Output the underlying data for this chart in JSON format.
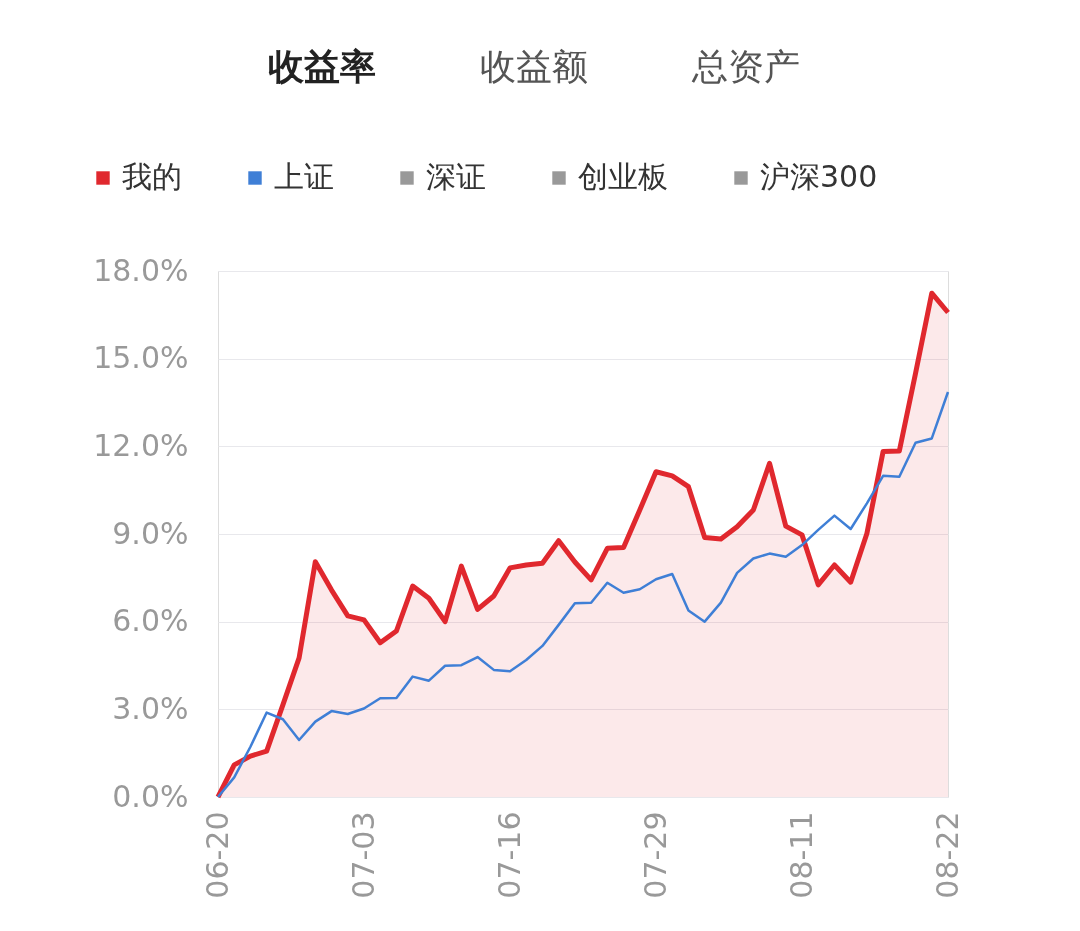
{
  "chart_data": {
    "type": "line",
    "annotations": [
      "收益率",
      "收益额",
      "总资产"
    ],
    "categories": [
      "06-20",
      null,
      null,
      null,
      null,
      null,
      null,
      null,
      null,
      "07-03",
      null,
      null,
      null,
      null,
      null,
      null,
      null,
      null,
      "07-16",
      null,
      null,
      null,
      null,
      null,
      null,
      null,
      null,
      "07-29",
      null,
      null,
      null,
      null,
      null,
      null,
      null,
      null,
      "08-11",
      null,
      null,
      null,
      null,
      null,
      null,
      null,
      null,
      "08-22"
    ],
    "series": [
      {
        "name": "我的",
        "type": "area",
        "color": "#e0282e",
        "values": [
          0.0,
          1.1,
          1.4,
          1.57,
          3.15,
          4.76,
          8.05,
          7.08,
          6.2,
          6.06,
          5.28,
          5.68,
          7.22,
          6.8,
          6.0,
          7.9,
          6.42,
          6.88,
          7.84,
          7.94,
          8.0,
          8.77,
          8.04,
          7.43,
          8.51,
          8.54,
          9.82,
          11.13,
          10.99,
          10.62,
          8.88,
          8.83,
          9.25,
          9.82,
          11.42,
          9.27,
          8.97,
          7.26,
          7.94,
          7.35,
          9.02,
          11.82,
          11.84,
          14.5,
          17.24,
          16.58
        ]
      },
      {
        "name": "上证",
        "color": "#3f7fd6",
        "values": [
          0.0,
          0.67,
          1.72,
          2.89,
          2.66,
          1.95,
          2.58,
          2.94,
          2.84,
          3.03,
          3.38,
          3.39,
          4.12,
          3.98,
          4.49,
          4.51,
          4.79,
          4.35,
          4.3,
          4.69,
          5.17,
          5.89,
          6.63,
          6.65,
          7.33,
          6.99,
          7.11,
          7.45,
          7.63,
          6.38,
          6.0,
          6.65,
          7.67,
          8.16,
          8.33,
          8.22,
          8.62,
          9.14,
          9.63,
          9.17,
          10.05,
          10.99,
          10.96,
          12.12,
          12.27,
          13.86
        ]
      },
      {
        "name": "深证",
        "color": "#999999",
        "values": [
          null,
          null,
          null,
          null,
          null,
          null,
          null,
          null,
          null,
          null,
          null,
          null,
          null,
          null,
          null,
          null,
          null,
          null,
          null,
          null,
          null,
          null,
          null,
          null,
          null,
          null,
          null,
          null,
          null,
          null,
          null,
          null,
          null,
          null,
          null,
          null,
          null,
          null,
          null,
          null,
          null,
          null,
          null,
          null,
          null,
          null
        ]
      },
      {
        "name": "创业板",
        "color": "#999999",
        "values": [
          null,
          null,
          null,
          null,
          null,
          null,
          null,
          null,
          null,
          null,
          null,
          null,
          null,
          null,
          null,
          null,
          null,
          null,
          null,
          null,
          null,
          null,
          null,
          null,
          null,
          null,
          null,
          null,
          null,
          null,
          null,
          null,
          null,
          null,
          null,
          null,
          null,
          null,
          null,
          null,
          null,
          null,
          null,
          null,
          null,
          null
        ]
      },
      {
        "name": "沪深300",
        "color": "#999999",
        "values": [
          null,
          null,
          null,
          null,
          null,
          null,
          null,
          null,
          null,
          null,
          null,
          null,
          null,
          null,
          null,
          null,
          null,
          null,
          null,
          null,
          null,
          null,
          null,
          null,
          null,
          null,
          null,
          null,
          null,
          null,
          null,
          null,
          null,
          null,
          null,
          null,
          null,
          null,
          null,
          null,
          null,
          null,
          null,
          null,
          null,
          null
        ]
      }
    ],
    "ylim": [
      0,
      18
    ],
    "yticks": [
      {
        "value": 0,
        "label": "0.0%"
      },
      {
        "value": 3,
        "label": "3.0%"
      },
      {
        "value": 6,
        "label": "6.0%"
      },
      {
        "value": 9,
        "label": "9.0%"
      },
      {
        "value": 12,
        "label": "12.0%"
      },
      {
        "value": 15,
        "label": "15.0%"
      },
      {
        "value": 18,
        "label": "18.0%"
      }
    ],
    "grid": "y",
    "legend": "top left",
    "marker": "none",
    "line_style": "solid"
  }
}
